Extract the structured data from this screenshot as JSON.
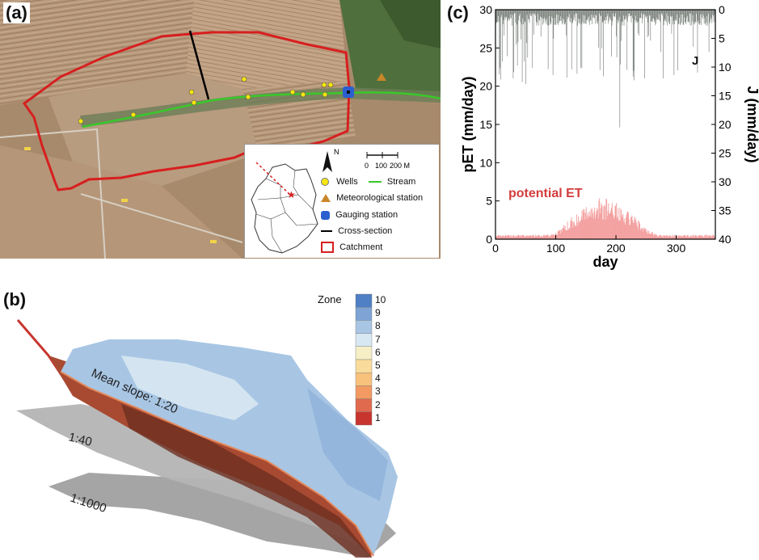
{
  "panels": {
    "a": "(a)",
    "b": "(b)",
    "c": "(c)"
  },
  "map": {
    "north_label": "N",
    "scale_labels": [
      "0",
      "100",
      "200 M"
    ],
    "legend": {
      "wells": "Wells",
      "stream": "Stream",
      "met_station": "Meteorological station",
      "gauging": "Gauging station",
      "cross_section": "Cross-section",
      "catchment": "Catchment"
    },
    "colors": {
      "catchment": "#d71f1f",
      "stream": "#39c82a",
      "wells": "#f5e60c",
      "met_station": "#c8862a",
      "gauging": "#2a5fd0"
    }
  },
  "chart_data": {
    "type": "bar",
    "xlabel": "day",
    "ylabel_left": "pET (mm/day)",
    "ylabel_right": "J (mm/day)",
    "xlim": [
      0,
      365
    ],
    "ylim_left": [
      0,
      30
    ],
    "ylim_right_inverted": [
      0,
      40
    ],
    "xticks": [
      0,
      100,
      200,
      300
    ],
    "yticks_left": [
      0,
      5,
      10,
      15,
      20,
      25,
      30
    ],
    "yticks_right": [
      0,
      5,
      10,
      15,
      20,
      25,
      30,
      35,
      40
    ],
    "series": [
      {
        "name": "potential ET",
        "axis": "left",
        "color": "#f4a0a0",
        "seasonal_peak_day": 180,
        "peak_value": 4.5,
        "winter_value": 0.5
      },
      {
        "name": "J",
        "axis": "right",
        "color": "#6d746e",
        "orientation": "downward",
        "max_daily": 20.5,
        "max_day": 207
      }
    ]
  },
  "model3d": {
    "colorbar_title": "Zone",
    "zones": [
      "10",
      "9",
      "8",
      "7",
      "6",
      "5",
      "4",
      "3",
      "2",
      "1"
    ],
    "zone_colors": [
      "#4f7fc4",
      "#7ea3d4",
      "#a8c6e4",
      "#d8e8f2",
      "#f6efc6",
      "#f9dc9c",
      "#f8c27d",
      "#f29a62",
      "#e06a4e",
      "#c8352f"
    ],
    "slopes": [
      "Mean slope: 1:20",
      "1:40",
      "1:1000"
    ]
  }
}
